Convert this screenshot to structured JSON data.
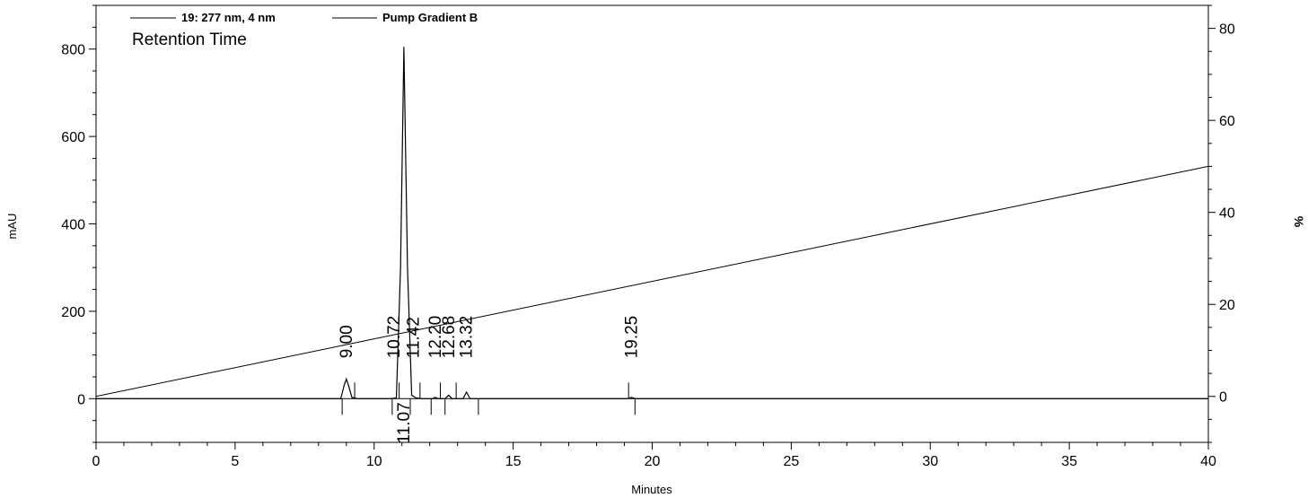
{
  "chart_data": {
    "type": "line",
    "title": "Retention Time",
    "xlabel": "Minutes",
    "ylabel": "mAU",
    "y2label": "%",
    "xlim": [
      0,
      40
    ],
    "ylim": [
      -100,
      900
    ],
    "y2lim": [
      -10,
      85
    ],
    "x_ticks": [
      0,
      5,
      10,
      15,
      20,
      25,
      30,
      35,
      40
    ],
    "y_ticks": [
      0,
      200,
      400,
      600,
      800
    ],
    "y2_ticks": [
      0,
      20,
      40,
      60,
      80
    ],
    "grid": false,
    "legend_position": "top-left",
    "legend": [
      {
        "label": "19: 277 nm, 4 nm",
        "axis": "left"
      },
      {
        "label": "Pump Gradient B",
        "axis": "right"
      }
    ],
    "series": [
      {
        "name": "19: 277 nm, 4 nm",
        "axis": "left",
        "x": [
          0,
          8.8,
          8.92,
          9.0,
          9.08,
          9.2,
          9.4,
          10.6,
          10.8,
          10.95,
          11.07,
          11.2,
          11.35,
          11.5,
          11.7,
          12.1,
          12.2,
          12.3,
          12.55,
          12.68,
          12.8,
          13.2,
          13.32,
          13.45,
          13.7,
          19.1,
          19.25,
          19.4,
          40
        ],
        "values": [
          0,
          0,
          30,
          45,
          30,
          3,
          0,
          0,
          2,
          300,
          805,
          300,
          8,
          2,
          0,
          0,
          3,
          0,
          0,
          8,
          0,
          0,
          15,
          0,
          0,
          0,
          3,
          0,
          0
        ]
      },
      {
        "name": "Pump Gradient B",
        "axis": "right",
        "x": [
          0,
          40
        ],
        "values": [
          0,
          50
        ]
      }
    ],
    "peak_labels": [
      {
        "text": "9.00",
        "x": 9.0,
        "pos": "above"
      },
      {
        "text": "10.72",
        "x": 10.72,
        "pos": "above"
      },
      {
        "text": "11.07",
        "x": 11.07,
        "pos": "below"
      },
      {
        "text": "11.42",
        "x": 11.42,
        "pos": "above"
      },
      {
        "text": "12.20",
        "x": 12.2,
        "pos": "above"
      },
      {
        "text": "12.68",
        "x": 12.68,
        "pos": "above"
      },
      {
        "text": "13.32",
        "x": 13.32,
        "pos": "above"
      },
      {
        "text": "19.25",
        "x": 19.25,
        "pos": "above"
      }
    ],
    "integration_marks": [
      8.85,
      9.3,
      10.65,
      10.9,
      11.3,
      11.65,
      12.05,
      12.38,
      12.55,
      12.95,
      13.75,
      19.15,
      19.38
    ]
  }
}
